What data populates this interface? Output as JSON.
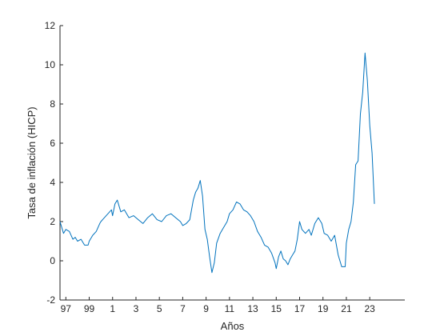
{
  "chart_data": {
    "type": "line",
    "xlabel": "Años",
    "ylabel": "Tasa de inflación (HICP)",
    "xlim": [
      1996.5,
      2026
    ],
    "ylim": [
      -2,
      12
    ],
    "y_ticks": [
      -2,
      0,
      2,
      4,
      6,
      8,
      10,
      12
    ],
    "x_ticks": [
      1997,
      1999,
      2001,
      2003,
      2005,
      2007,
      2009,
      2011,
      2013,
      2015,
      2017,
      2019,
      2021,
      2023
    ],
    "x_tick_labels": [
      "97",
      "99",
      "1",
      "3",
      "5",
      "7",
      "9",
      "11",
      "13",
      "15",
      "17",
      "19",
      "21",
      "23"
    ],
    "grid": false,
    "color": "#0072BD",
    "series": [
      {
        "x": [
          1996.5,
          1996.8,
          1997.0,
          1997.3,
          1997.6,
          1997.8,
          1998.0,
          1998.3,
          1998.6,
          1998.9,
          1999.0,
          1999.3,
          1999.6,
          1999.9,
          2000.0,
          2000.3,
          2000.6,
          2000.9,
          2001.0,
          2001.2,
          2001.4,
          2001.7,
          2002.0,
          2002.4,
          2002.8,
          2003.2,
          2003.6,
          2004.0,
          2004.4,
          2004.8,
          2005.2,
          2005.6,
          2006.0,
          2006.4,
          2006.8,
          2007.0,
          2007.3,
          2007.6,
          2007.9,
          2008.1,
          2008.3,
          2008.5,
          2008.7,
          2008.9,
          2009.1,
          2009.3,
          2009.5,
          2009.7,
          2009.9,
          2010.2,
          2010.5,
          2010.8,
          2011.0,
          2011.3,
          2011.6,
          2011.9,
          2012.2,
          2012.5,
          2012.8,
          2013.1,
          2013.4,
          2013.7,
          2014.0,
          2014.3,
          2014.6,
          2014.9,
          2015.0,
          2015.2,
          2015.4,
          2015.6,
          2015.8,
          2016.0,
          2016.2,
          2016.4,
          2016.6,
          2016.8,
          2017.0,
          2017.2,
          2017.5,
          2017.8,
          2018.0,
          2018.3,
          2018.6,
          2018.9,
          2019.1,
          2019.4,
          2019.7,
          2020.0,
          2020.3,
          2020.6,
          2020.9,
          2021.0,
          2021.2,
          2021.4,
          2021.6,
          2021.8,
          2022.0,
          2022.2,
          2022.4,
          2022.6,
          2022.8,
          2023.0,
          2023.2,
          2023.4
        ],
        "y": [
          2.0,
          1.4,
          1.6,
          1.5,
          1.1,
          1.2,
          1.0,
          1.1,
          0.8,
          0.8,
          1.0,
          1.3,
          1.5,
          1.9,
          2.0,
          2.2,
          2.4,
          2.6,
          2.3,
          2.9,
          3.1,
          2.5,
          2.6,
          2.2,
          2.3,
          2.1,
          1.9,
          2.2,
          2.4,
          2.1,
          2.0,
          2.3,
          2.4,
          2.2,
          2.0,
          1.8,
          1.9,
          2.1,
          3.1,
          3.5,
          3.7,
          4.1,
          3.3,
          1.6,
          1.1,
          0.2,
          -0.6,
          -0.1,
          0.9,
          1.4,
          1.7,
          2.0,
          2.4,
          2.6,
          3.0,
          2.9,
          2.6,
          2.5,
          2.3,
          2.0,
          1.5,
          1.2,
          0.8,
          0.7,
          0.4,
          -0.1,
          -0.4,
          0.2,
          0.5,
          0.1,
          0.0,
          -0.2,
          0.1,
          0.3,
          0.5,
          1.1,
          2.0,
          1.6,
          1.4,
          1.6,
          1.3,
          1.9,
          2.2,
          1.9,
          1.4,
          1.3,
          1.0,
          1.3,
          0.3,
          -0.3,
          -0.3,
          0.9,
          1.6,
          2.0,
          3.0,
          4.9,
          5.1,
          7.5,
          8.6,
          10.6,
          9.2,
          6.9,
          5.5,
          2.9
        ]
      }
    ]
  }
}
